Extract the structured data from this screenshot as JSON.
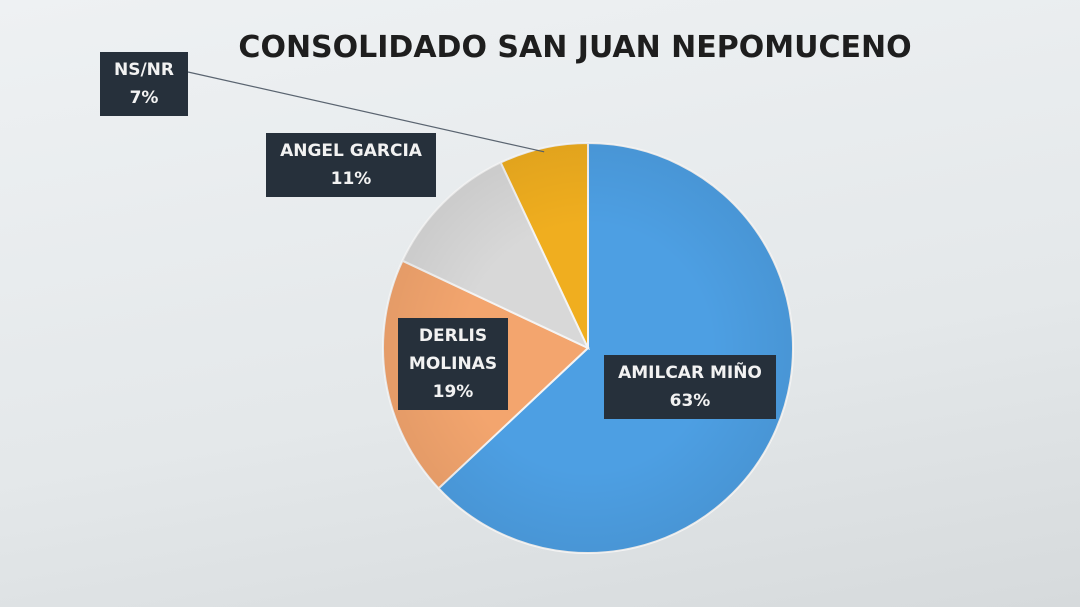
{
  "chart_data": {
    "type": "pie",
    "title": "CONSOLIDADO SAN JUAN NEPOMUCENO",
    "categories": [
      "AMILCAR MIÑO",
      "DERLIS MOLINAS",
      "ANGEL GARCIA",
      "NS/NR"
    ],
    "values": [
      63,
      19,
      11,
      7
    ],
    "value_labels": [
      "63%",
      "19%",
      "11%",
      "7%"
    ],
    "colors": [
      "#4d9fe3",
      "#f3a56e",
      "#d8d8d8",
      "#f0ae1f"
    ]
  }
}
